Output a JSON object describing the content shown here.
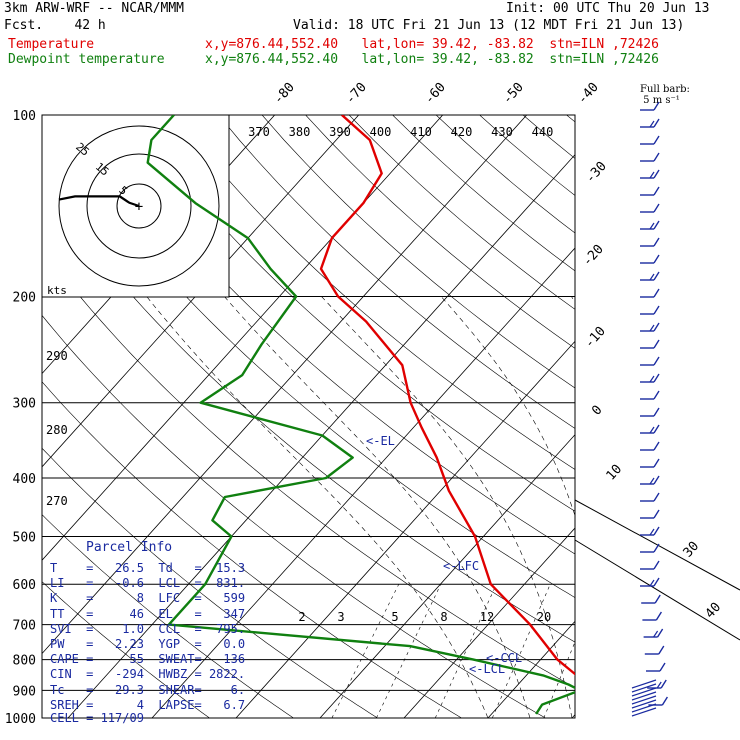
{
  "header": {
    "title": "3km ARW-WRF -- NCAR/MMM",
    "init": "Init: 00 UTC Thu 20 Jun 13",
    "fcst": "Fcst.    42 h",
    "valid": "Valid: 18 UTC Fri 21 Jun 13 (12 MDT Fri 21 Jun 13)",
    "line_temp": {
      "label": "Temperature",
      "coords": "x,y=876.44,552.40   lat,lon= 39.42, -83.82  stn=ILN ,72426"
    },
    "line_dew": {
      "label": "Dewpoint temperature",
      "coords": "x,y=876.44,552.40   lat,lon= 39.42, -83.82  stn=ILN ,72426"
    },
    "barb_legend": "Full barb:\n 5 m s⁻¹"
  },
  "colors": {
    "temperature": "#e00000",
    "dewpoint": "#108010",
    "annotations": "#1a2aa0",
    "grid": "#000000"
  },
  "chart_data": {
    "type": "line",
    "subtype": "skew-T log-p diagram",
    "pressure_axis_ticks": [
      "100",
      "200",
      "300",
      "400",
      "500",
      "600",
      "700",
      "800",
      "900",
      "1000"
    ],
    "isotherm_labels": [
      "-80",
      "-70",
      "-60",
      "-50",
      "-40",
      "-30",
      "-20",
      "-10",
      "0",
      "10",
      "30",
      "40"
    ],
    "theta_labels": [
      "370",
      "380",
      "390",
      "400",
      "410",
      "420",
      "430",
      "440"
    ],
    "theta_side_labels": [
      "290",
      "280",
      "270"
    ],
    "mixing_ratio_labels": [
      "2",
      "3",
      "5",
      "8",
      "12",
      "20"
    ],
    "series": [
      {
        "name": "Temperature",
        "pressure": [
          985,
          950,
          900,
          880,
          850,
          800,
          700,
          600,
          500,
          420,
          370,
          330,
          300,
          260,
          220,
          200,
          180,
          160,
          140,
          125,
          110,
          100
        ],
        "temperature_c": [
          29,
          25,
          22,
          18.5,
          16,
          12,
          5,
          -4,
          -11,
          -19,
          -24,
          -29,
          -33,
          -38,
          -47,
          -53,
          -58,
          -60,
          -60,
          -61,
          -66,
          -72
        ]
      },
      {
        "name": "Dewpoint temperature",
        "pressure": [
          985,
          950,
          900,
          880,
          850,
          800,
          760,
          700,
          600,
          500,
          470,
          430,
          400,
          370,
          340,
          300,
          270,
          240,
          200,
          180,
          160,
          140,
          120,
          110,
          100
        ],
        "dewpoint_c": [
          15.3,
          15,
          18,
          16,
          12,
          2,
          -7,
          -38,
          -38,
          -40,
          -44,
          -45,
          -35,
          -34,
          -40,
          -58,
          -56,
          -57,
          -58,
          -64,
          -70,
          -80,
          -90,
          -92,
          -92
        ]
      }
    ],
    "annotations": [
      "<-EL",
      "<-LFC",
      "<-CCL",
      "<-LCL"
    ],
    "hodograph": {
      "rings": [
        "5",
        "15",
        "25"
      ],
      "units": "kts",
      "points_u_v": [
        [
          -25,
          2
        ],
        [
          -20,
          3
        ],
        [
          -12,
          3
        ],
        [
          -6,
          3
        ],
        [
          -3,
          1
        ],
        [
          0,
          0
        ]
      ]
    },
    "wind_barbs_count": 36
  },
  "parcel_info": {
    "title": "Parcel Info",
    "rows": [
      {
        "k1": "T",
        "v1": "26.5",
        "k2": "Td",
        "v2": "15.3"
      },
      {
        "k1": "LI",
        "v1": "-0.6",
        "k2": "LCL",
        "v2": "831."
      },
      {
        "k1": "K",
        "v1": "8",
        "k2": "LFC",
        "v2": "599"
      },
      {
        "k1": "TT",
        "v1": "46",
        "k2": "EL",
        "v2": "347"
      },
      {
        "k1": "SVI",
        "v1": "1.0",
        "k2": "CCL",
        "v2": "795."
      },
      {
        "k1": "PW",
        "v1": "2.23",
        "k2": "YGP",
        "v2": "0.0"
      },
      {
        "k1": "CAPE",
        "v1": "55",
        "k2": "SWEAT",
        "v2": "136"
      },
      {
        "k1": "CIN",
        "v1": "-294",
        "k2": "HWBZ",
        "v2": "2822."
      },
      {
        "k1": "Tc",
        "v1": "29.3",
        "k2": "SHEAR",
        "v2": "6."
      },
      {
        "k1": "SREH",
        "v1": "4",
        "k2": "LAPSE",
        "v2": "6.7"
      }
    ],
    "cell": "CELL = 117/09"
  }
}
